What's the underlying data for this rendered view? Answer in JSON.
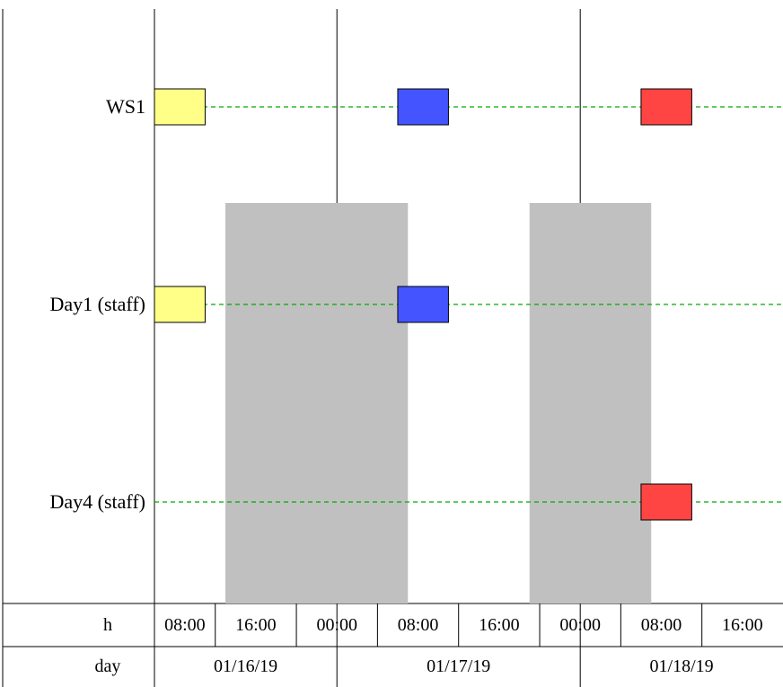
{
  "chart_data": {
    "type": "gantt",
    "x_start": "01/16/19 06:00",
    "x_end": "01/18/19 20:00",
    "rows": [
      {
        "label": "WS1",
        "tasks": [
          {
            "start": "01/16/19 06:00",
            "end": "01/16/19 11:00",
            "color": "#ffff88"
          },
          {
            "start": "01/17/19 06:00",
            "end": "01/17/19 11:00",
            "color": "#4455ff"
          },
          {
            "start": "01/18/19 06:00",
            "end": "01/18/19 11:00",
            "color": "#ff4444"
          }
        ]
      },
      {
        "label": "Day1 (staff)",
        "tasks": [
          {
            "start": "01/16/19 06:00",
            "end": "01/16/19 11:00",
            "color": "#ffff88"
          },
          {
            "start": "01/17/19 06:00",
            "end": "01/17/19 11:00",
            "color": "#4455ff"
          }
        ]
      },
      {
        "label": "Day4 (staff)",
        "tasks": [
          {
            "start": "01/18/19 06:00",
            "end": "01/18/19 11:00",
            "color": "#ff4444"
          }
        ]
      }
    ],
    "off_periods": [
      {
        "start": "01/16/19 13:00",
        "end": "01/17/19 07:00"
      },
      {
        "start": "01/17/19 19:00",
        "end": "01/18/19 07:00"
      }
    ],
    "hour_ticks": [
      "08:00",
      "16:00",
      "00:00",
      "08:00",
      "16:00",
      "00:00",
      "08:00",
      "16:00"
    ],
    "day_ticks": [
      "01/16/19",
      "01/17/19",
      "01/18/19"
    ],
    "axis_labels": {
      "hour": "h",
      "day": "day"
    },
    "off_color": "#c0c0c0",
    "link_color": "#00aa00"
  }
}
